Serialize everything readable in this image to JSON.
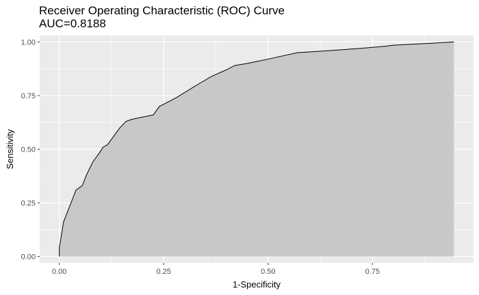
{
  "chart_data": {
    "type": "area",
    "title": "Receiver Operating Characteristic (ROC) Curve",
    "subtitle": "AUC=0.8188",
    "xlabel": "1-Specificity",
    "ylabel": "Sensitivity",
    "xlim": [
      -0.047,
      0.992
    ],
    "ylim": [
      -0.03,
      1.03
    ],
    "x_ticks": [
      0.0,
      0.25,
      0.5,
      0.75
    ],
    "x_tick_labels": [
      "0.00",
      "0.25",
      "0.50",
      "0.75"
    ],
    "y_ticks": [
      0.0,
      0.25,
      0.5,
      0.75,
      1.0
    ],
    "y_tick_labels": [
      "0.00",
      "0.25",
      "0.50",
      "0.75",
      "1.00"
    ],
    "grid": true,
    "colors": {
      "panel": "#ebebeb",
      "grid": "#ffffff",
      "fill": "#c8c8c8",
      "line": "#000000"
    },
    "series": [
      {
        "x": [
          0.0,
          0.0,
          0.005,
          0.01,
          0.02,
          0.03,
          0.04,
          0.055,
          0.065,
          0.08,
          0.095,
          0.105,
          0.115,
          0.13,
          0.145,
          0.16,
          0.175,
          0.2,
          0.225,
          0.24,
          0.25,
          0.28,
          0.33,
          0.365,
          0.4,
          0.42,
          0.45,
          0.5,
          0.57,
          0.65,
          0.72,
          0.78,
          0.8,
          0.85,
          0.9,
          0.945
        ],
        "y": [
          0.0,
          0.04,
          0.1,
          0.16,
          0.21,
          0.26,
          0.31,
          0.33,
          0.38,
          0.44,
          0.48,
          0.51,
          0.52,
          0.56,
          0.6,
          0.63,
          0.64,
          0.65,
          0.66,
          0.7,
          0.71,
          0.74,
          0.8,
          0.84,
          0.87,
          0.89,
          0.9,
          0.92,
          0.95,
          0.96,
          0.97,
          0.98,
          0.985,
          0.99,
          0.995,
          1.0
        ]
      }
    ]
  }
}
